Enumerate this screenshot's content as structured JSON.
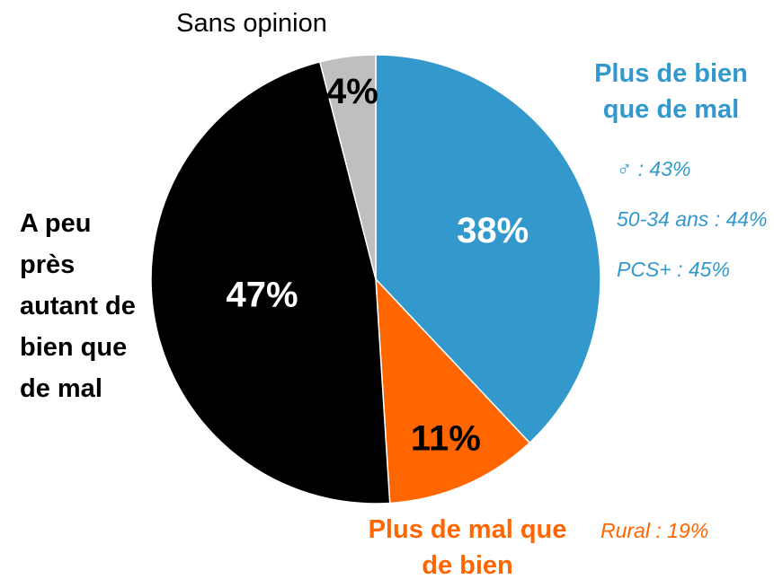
{
  "chart_data": {
    "type": "pie",
    "categories": [
      "Plus de bien que de mal",
      "Plus de mal que de bien",
      "A peu près autant de bien que de mal",
      "Sans opinion"
    ],
    "values": [
      38,
      11,
      47,
      4
    ],
    "value_labels": [
      "38%",
      "11%",
      "47%",
      "4%"
    ],
    "colors": [
      "#3399cc",
      "#ff6600",
      "#000000",
      "#bfbfbf"
    ],
    "annotations": [
      [
        "♂ : 43%",
        "50-34 ans : 44%",
        "PCS+ : 45%"
      ],
      [
        "Rural : 19%"
      ],
      [],
      []
    ]
  }
}
